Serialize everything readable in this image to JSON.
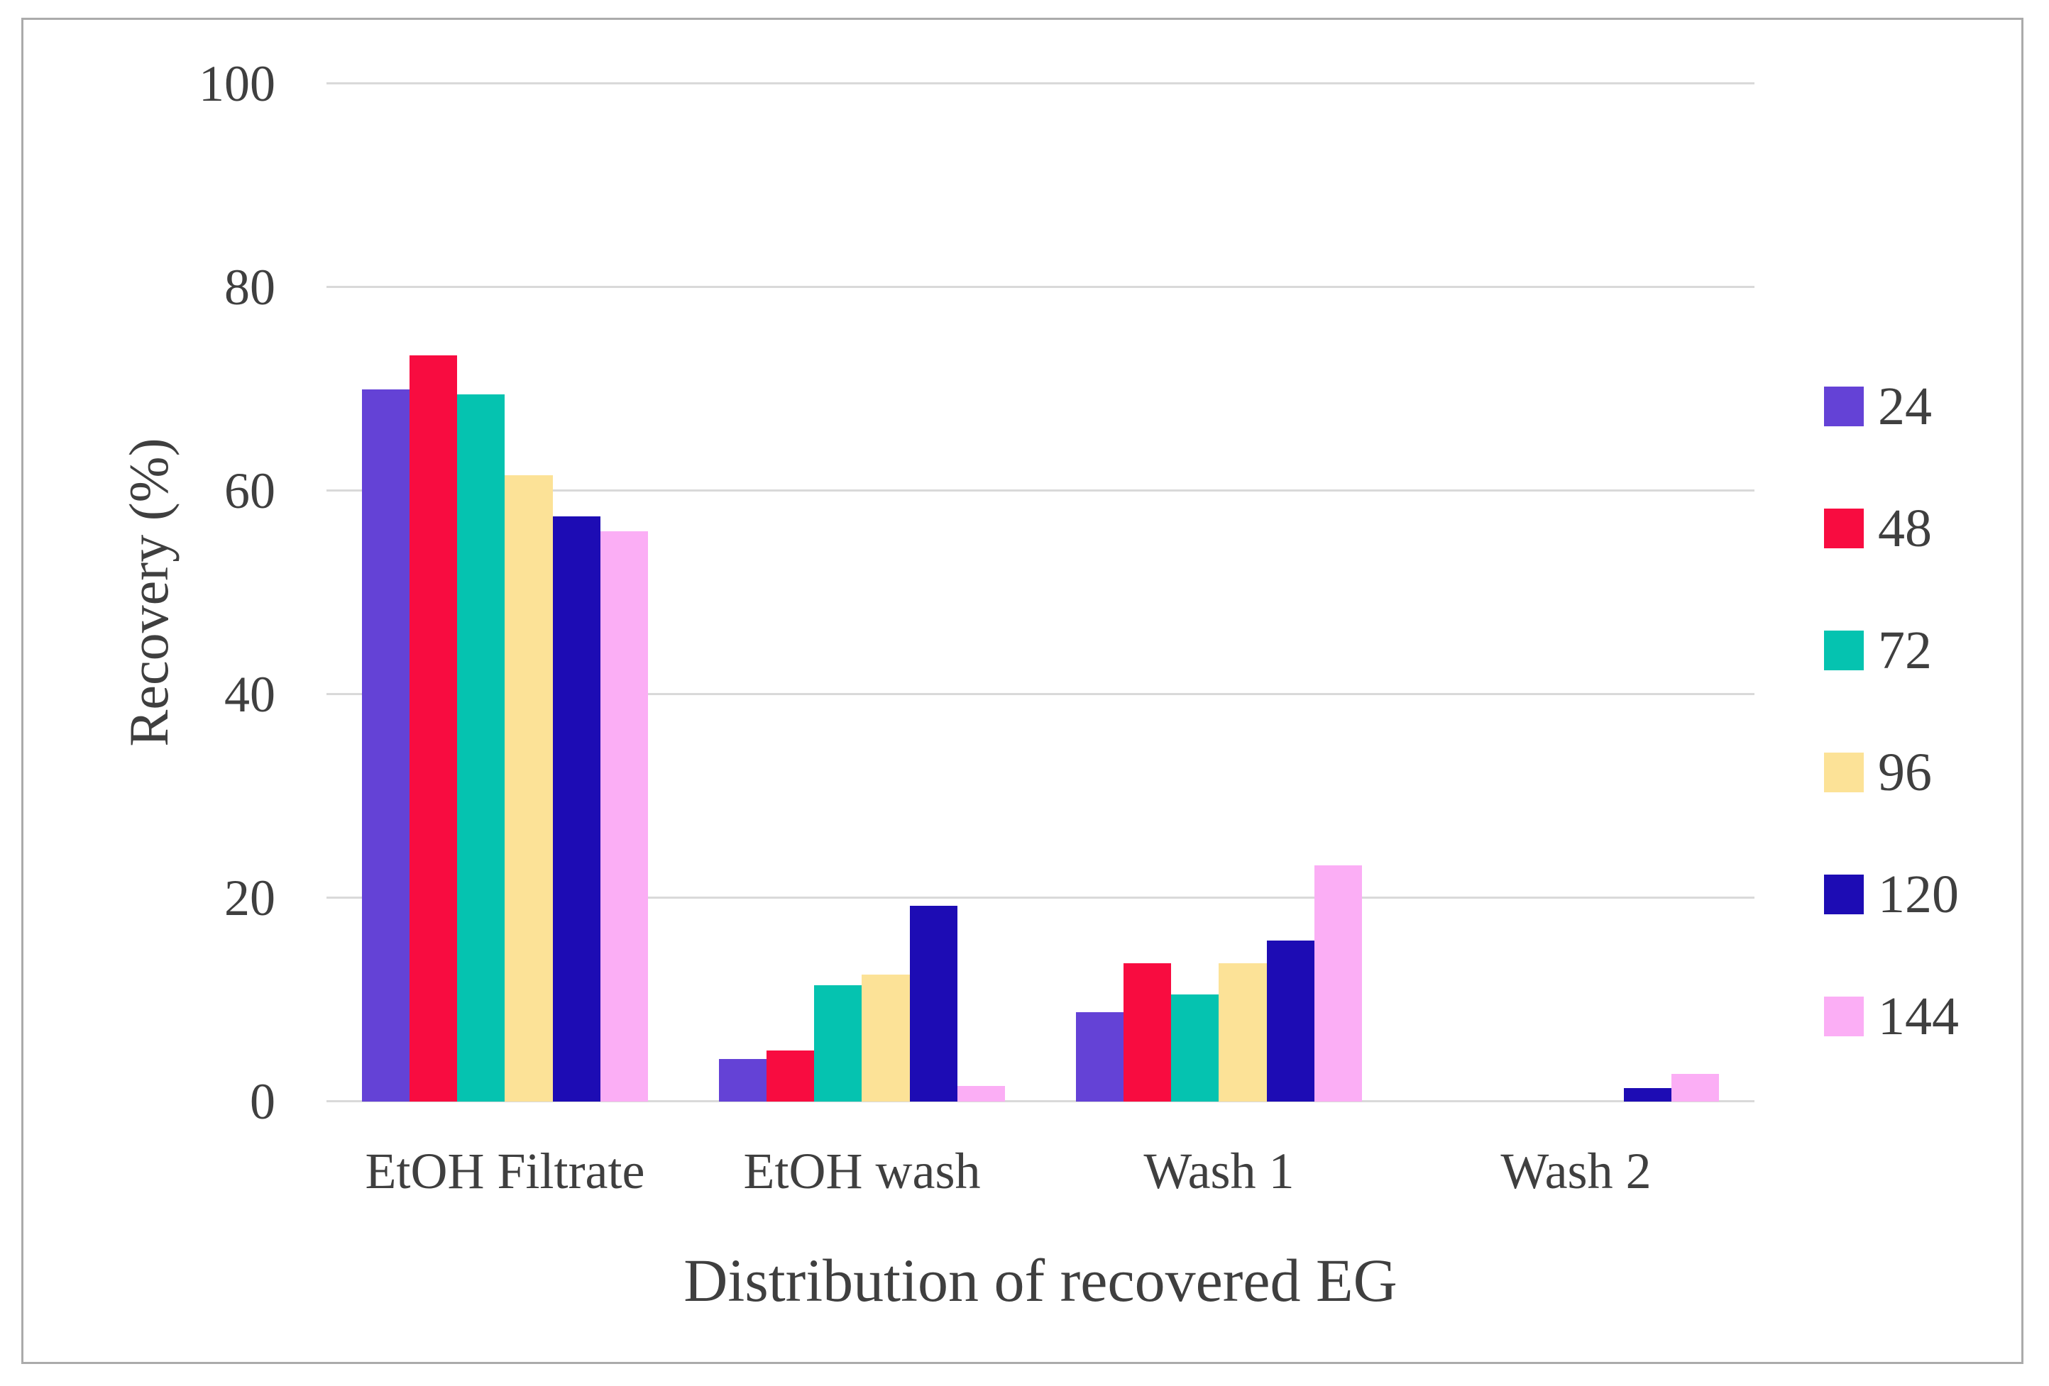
{
  "chart_data": {
    "type": "bar",
    "title": "",
    "xlabel": "Distribution of recovered EG",
    "ylabel": "Recovery (%)",
    "categories": [
      "EtOH Filtrate",
      "EtOH wash",
      "Wash 1",
      "Wash 2"
    ],
    "series": [
      {
        "name": "24",
        "color": "#6442D6",
        "values": [
          70.0,
          4.2,
          8.8,
          0
        ]
      },
      {
        "name": "48",
        "color": "#F80C40",
        "values": [
          73.3,
          5.0,
          13.6,
          0
        ]
      },
      {
        "name": "72",
        "color": "#05C3B0",
        "values": [
          69.5,
          11.4,
          10.5,
          0
        ]
      },
      {
        "name": "96",
        "color": "#FCE297",
        "values": [
          61.5,
          12.5,
          13.6,
          0
        ]
      },
      {
        "name": "120",
        "color": "#1D0CB4",
        "values": [
          57.5,
          19.2,
          15.8,
          1.3
        ]
      },
      {
        "name": "144",
        "color": "#FBAEF5",
        "values": [
          56.0,
          1.5,
          23.2,
          2.7
        ]
      }
    ],
    "ylim": [
      0,
      100
    ],
    "yticks": [
      0,
      20,
      40,
      60,
      80,
      100
    ],
    "grid": "horizontal",
    "legend_position": "right"
  },
  "colors": {
    "gridline": "#D9D9D9",
    "frame_border": "#ABABAB",
    "text": "#3F3F3F",
    "background": "#FFFFFF"
  }
}
